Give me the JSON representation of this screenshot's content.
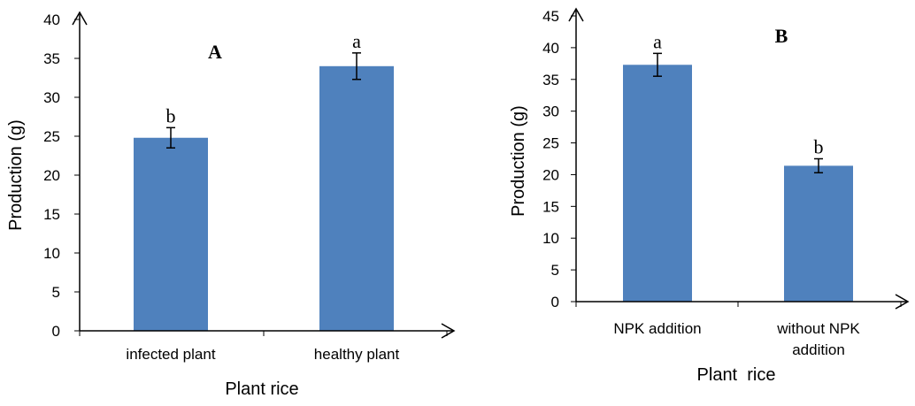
{
  "chart_data": [
    {
      "type": "bar",
      "panel_label": "A",
      "categories": [
        "infected plant",
        "healthy plant"
      ],
      "values": [
        24.8,
        34.0
      ],
      "errors": [
        1.3,
        1.7
      ],
      "significance": [
        "b",
        "a"
      ],
      "xlabel": "Plant rice",
      "ylabel": "Production (g)",
      "ylim": [
        0,
        40
      ],
      "yticks": [
        "0",
        "5",
        "10",
        "15",
        "20",
        "25",
        "30",
        "35",
        "40"
      ],
      "bar_color": "#4f81bd",
      "grid": false,
      "legend": "none"
    },
    {
      "type": "bar",
      "panel_label": "B",
      "categories": [
        "NPK addition",
        "without NPK addition"
      ],
      "category_lines": [
        [
          "NPK addition"
        ],
        [
          "without NPK",
          "addition"
        ]
      ],
      "values": [
        37.3,
        21.4
      ],
      "errors": [
        1.8,
        1.1
      ],
      "significance": [
        "a",
        "b"
      ],
      "xlabel": "Plant  rice",
      "ylabel": "Production (g)",
      "ylim": [
        0,
        45
      ],
      "yticks": [
        "0",
        "5",
        "10",
        "15",
        "20",
        "25",
        "30",
        "35",
        "40",
        "45"
      ],
      "bar_color": "#4f81bd",
      "grid": false,
      "legend": "none"
    }
  ]
}
